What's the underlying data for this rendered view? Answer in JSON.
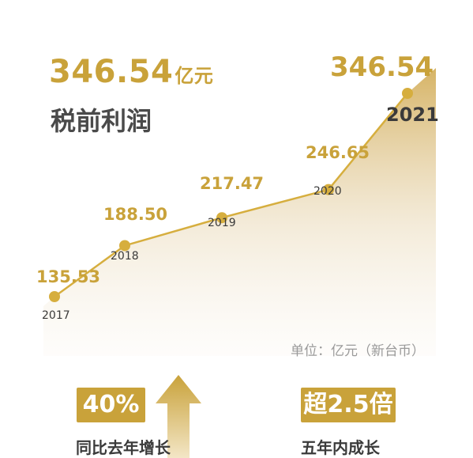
{
  "headline": {
    "value": "346.54",
    "unit": "亿元"
  },
  "subtitle": "税前利润",
  "unit_note": "单位：亿元（新台币）",
  "stats": [
    {
      "value": "40%",
      "label": "同比去年增长"
    },
    {
      "value": "超2.5倍",
      "label": "五年内成长"
    }
  ],
  "colors": {
    "accent": "#c9a23a",
    "line": "#d6ae3e",
    "text": "#3a3a3a",
    "muted": "#9a9a9a"
  },
  "icons": [
    "up-arrow-icon"
  ],
  "chart_data": {
    "type": "area",
    "x": [
      "2017",
      "2018",
      "2019",
      "2020",
      "2021"
    ],
    "values": [
      135.53,
      188.5,
      217.47,
      246.65,
      346.54
    ],
    "value_labels": [
      "135.53",
      "188.50",
      "217.47",
      "246.65",
      "346.54"
    ],
    "unit": "亿元（新台币）",
    "title": "税前利润",
    "grid": false,
    "legend": "none"
  }
}
